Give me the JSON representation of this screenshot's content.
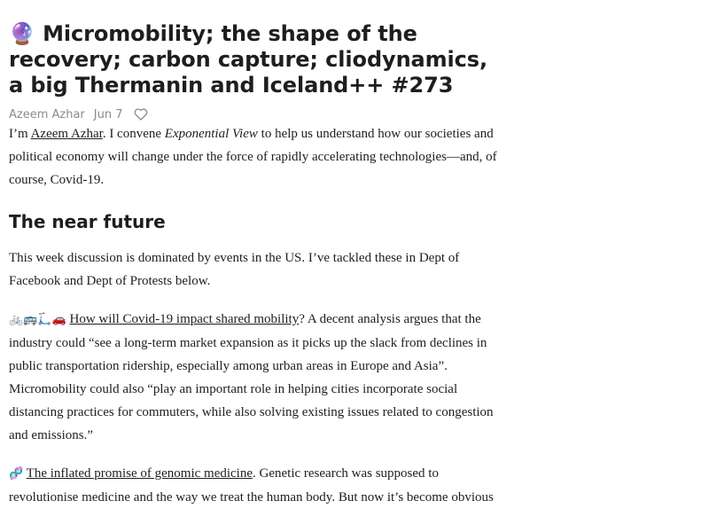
{
  "post": {
    "title_emoji": "🔮",
    "title": "Micromobility; the shape of the recovery; carbon capture; cliodynamics, a big Thermanin and Iceland++ #273",
    "author": "Azeem Azhar",
    "date": "Jun 7",
    "like_icon": "heart-outline-icon"
  },
  "intro": {
    "prefix": "I’m ",
    "author_link": "Azeem Azhar",
    "middle": ". I convene ",
    "publication": "Exponential View",
    "suffix": " to help us understand how our societies and political economy will change under the force of rapidly accelerating technologies—and, of course, Covid-19."
  },
  "section": {
    "heading": "The near future",
    "paragraph1": "This week discussion is dominated by events in the US. I’ve tackled these in Dept of Facebook and Dept of Protests below.",
    "paragraph2": {
      "emoji": "🚲🚌🛴🚗",
      "link": "How will Covid-19 impact shared mobility",
      "text": "? A decent analysis argues that the industry could “see a long-term market expansion as it picks up the slack from declines in public transportation ridership, especially among urban areas in Europe and Asia”. Micromobility could also “play an important role in helping cities incorporate social distancing practices for commuters, while also solving existing issues related to congestion and emissions.”"
    },
    "paragraph3": {
      "emoji": "🧬",
      "link": "The inflated promise of genomic medicine",
      "text": ". Genetic research was supposed to revolutionise medicine and the way we treat the human body. But now it’s become obvious"
    }
  }
}
